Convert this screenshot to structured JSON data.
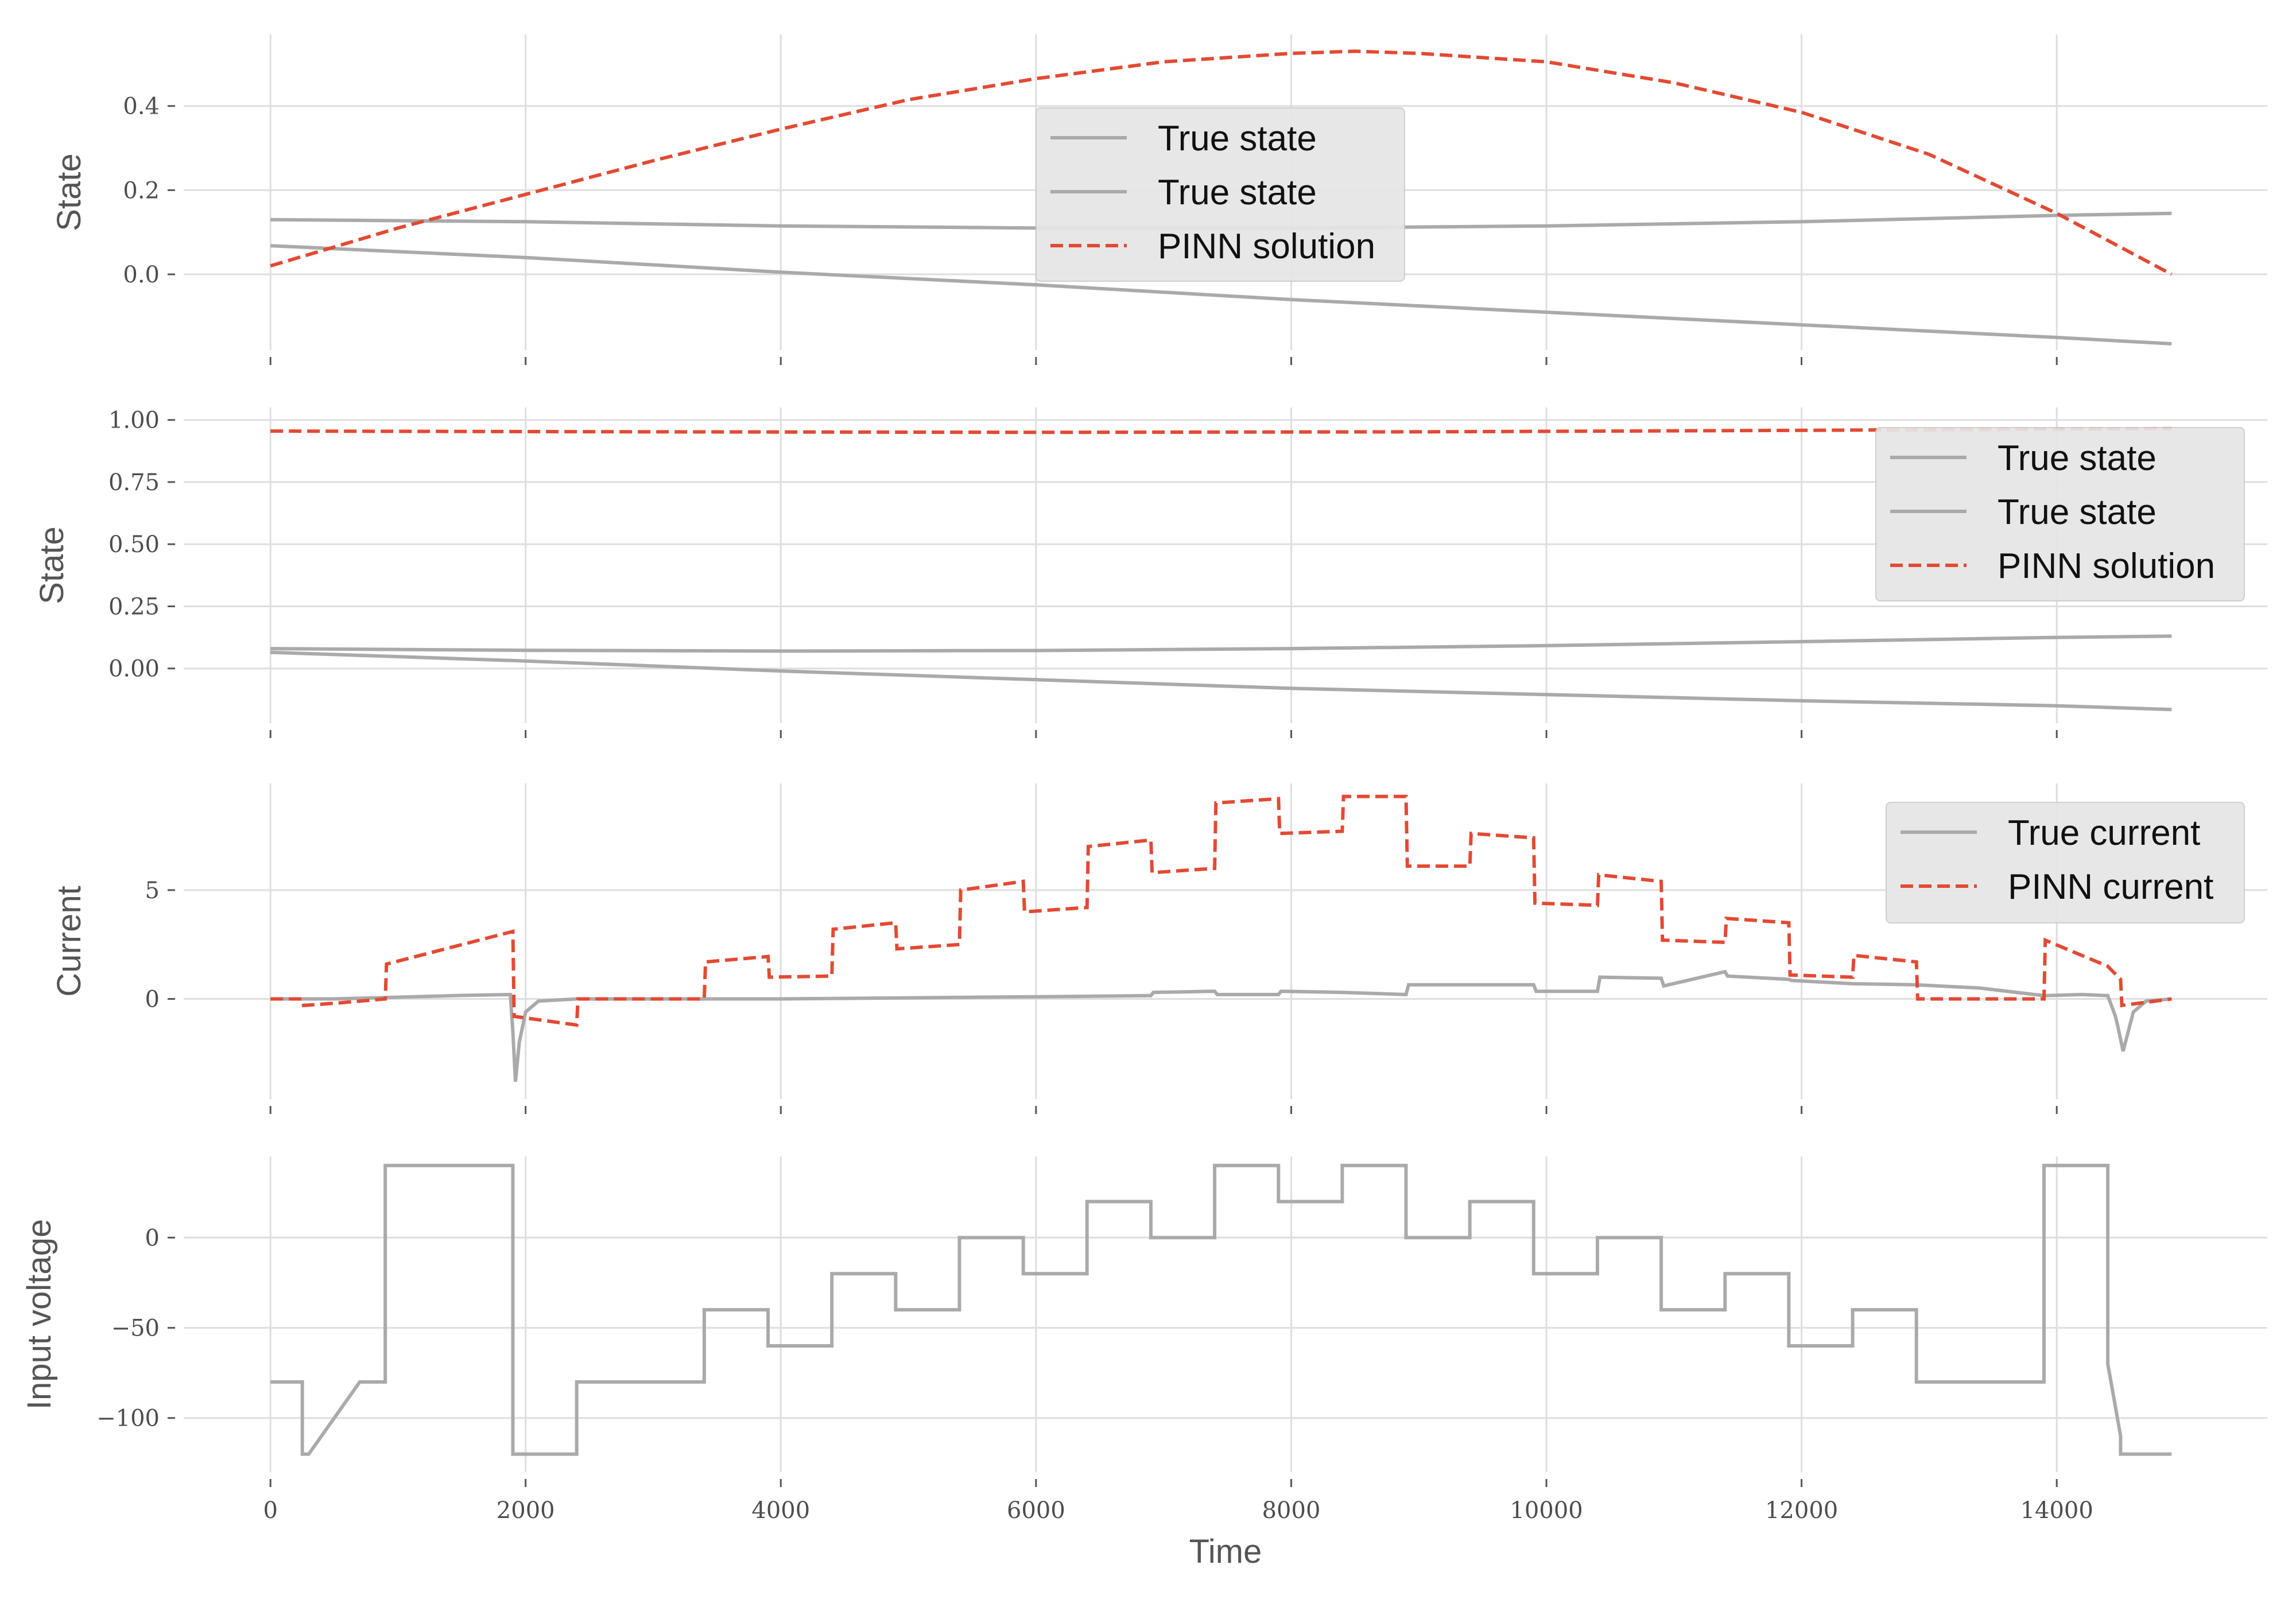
{
  "chart_data": [
    {
      "type": "line",
      "ylabel": "State",
      "ylim": [
        -0.18,
        0.57
      ],
      "yticks": [
        0.0,
        0.2,
        0.4
      ],
      "ytick_labels": [
        "0.0",
        "0.2",
        "0.4"
      ],
      "show_xticklabels": false,
      "legend": {
        "placement": "upper-center",
        "labels": [
          "True state",
          "True state",
          "PINN solution"
        ]
      },
      "series": [
        {
          "name": "True state",
          "color": "#aaaaaa",
          "style": "solid",
          "x": [
            0,
            2000,
            4000,
            6000,
            8000,
            10000,
            12000,
            14000,
            14900
          ],
          "y": [
            0.13,
            0.125,
            0.115,
            0.11,
            0.11,
            0.115,
            0.125,
            0.14,
            0.145
          ]
        },
        {
          "name": "True state",
          "color": "#aaaaaa",
          "style": "solid",
          "x": [
            0,
            2000,
            4000,
            6000,
            8000,
            10000,
            12000,
            14000,
            14900
          ],
          "y": [
            0.068,
            0.04,
            0.005,
            -0.025,
            -0.06,
            -0.09,
            -0.12,
            -0.15,
            -0.165
          ]
        },
        {
          "name": "PINN solution",
          "color": "#e24a33",
          "style": "dashed",
          "x": [
            0,
            1000,
            2000,
            3000,
            4000,
            5000,
            6000,
            7000,
            8000,
            8500,
            9000,
            10000,
            11000,
            12000,
            13000,
            14000,
            14900
          ],
          "y": [
            0.02,
            0.11,
            0.19,
            0.27,
            0.345,
            0.415,
            0.465,
            0.505,
            0.525,
            0.53,
            0.525,
            0.505,
            0.455,
            0.385,
            0.285,
            0.145,
            0.0
          ]
        }
      ]
    },
    {
      "type": "line",
      "ylabel": "State",
      "ylim": [
        -0.22,
        1.05
      ],
      "yticks": [
        0.0,
        0.25,
        0.5,
        0.75,
        1.0
      ],
      "ytick_labels": [
        "0.00",
        "0.25",
        "0.50",
        "0.75",
        "1.00"
      ],
      "show_xticklabels": false,
      "legend": {
        "placement": "right",
        "labels": [
          "True state",
          "True state",
          "PINN solution"
        ]
      },
      "series": [
        {
          "name": "True state",
          "color": "#aaaaaa",
          "style": "solid",
          "x": [
            0,
            2000,
            4000,
            6000,
            8000,
            10000,
            12000,
            14000,
            14900
          ],
          "y": [
            0.08,
            0.073,
            0.07,
            0.072,
            0.08,
            0.092,
            0.108,
            0.125,
            0.13
          ]
        },
        {
          "name": "True state",
          "color": "#aaaaaa",
          "style": "solid",
          "x": [
            0,
            2000,
            4000,
            6000,
            8000,
            10000,
            12000,
            14000,
            14900
          ],
          "y": [
            0.065,
            0.03,
            -0.01,
            -0.045,
            -0.08,
            -0.105,
            -0.13,
            -0.15,
            -0.165
          ]
        },
        {
          "name": "PINN solution",
          "color": "#e24a33",
          "style": "dashed",
          "x": [
            0,
            3000,
            6000,
            9000,
            12000,
            14900
          ],
          "y": [
            0.955,
            0.952,
            0.95,
            0.952,
            0.958,
            0.965
          ]
        }
      ]
    },
    {
      "type": "line",
      "ylabel": "Current",
      "ylim": [
        -4.6,
        9.9
      ],
      "yticks": [
        0,
        5
      ],
      "ytick_labels": [
        "0",
        "5"
      ],
      "show_xticklabels": false,
      "legend": {
        "placement": "upper-right",
        "labels": [
          "True current",
          "PINN current"
        ]
      },
      "series": [
        {
          "name": "True current",
          "color": "#aaaaaa",
          "style": "solid",
          "x": [
            0,
            500,
            1000,
            1500,
            1880,
            1900,
            1920,
            1950,
            2000,
            2100,
            2400,
            3000,
            4000,
            5000,
            6000,
            6900,
            6920,
            7400,
            7420,
            7900,
            7920,
            8400,
            8900,
            8920,
            9900,
            9920,
            10400,
            10420,
            10900,
            10920,
            11400,
            11420,
            11900,
            11920,
            12400,
            12900,
            13400,
            13900,
            14200,
            14400,
            14460,
            14480,
            14520,
            14600,
            14700,
            14900
          ],
          "y": [
            0.0,
            0.0,
            0.08,
            0.16,
            0.2,
            -1.5,
            -3.8,
            -2.0,
            -0.6,
            -0.1,
            0.0,
            0.0,
            0.0,
            0.05,
            0.1,
            0.15,
            0.3,
            0.35,
            0.2,
            0.2,
            0.35,
            0.3,
            0.2,
            0.65,
            0.65,
            0.35,
            0.35,
            1.0,
            0.95,
            0.6,
            1.25,
            1.05,
            0.9,
            0.85,
            0.7,
            0.65,
            0.5,
            0.15,
            0.2,
            0.15,
            -0.8,
            -1.3,
            -2.4,
            -0.6,
            -0.1,
            0.0
          ]
        },
        {
          "name": "PINN current",
          "color": "#e24a33",
          "style": "dashed",
          "x": [
            0,
            250,
            260,
            500,
            900,
            910,
            1900,
            1910,
            2400,
            2410,
            3400,
            3410,
            3900,
            3910,
            4400,
            4410,
            4900,
            4910,
            5400,
            5410,
            5900,
            5910,
            6400,
            6410,
            6900,
            6910,
            7400,
            7410,
            7900,
            7910,
            8400,
            8410,
            8900,
            8910,
            9400,
            9410,
            9900,
            9910,
            10400,
            10410,
            10900,
            10910,
            11400,
            11410,
            11900,
            11910,
            12400,
            12410,
            12900,
            12910,
            13400,
            13900,
            13910,
            14400,
            14500,
            14510,
            14900
          ],
          "y": [
            0.0,
            0.0,
            -0.3,
            -0.2,
            0.0,
            1.6,
            3.1,
            -0.8,
            -1.2,
            0.0,
            0.0,
            1.7,
            1.95,
            1.0,
            1.05,
            3.2,
            3.5,
            2.3,
            2.5,
            5.0,
            5.4,
            4.0,
            4.2,
            7.0,
            7.3,
            5.8,
            6.0,
            9.0,
            9.2,
            7.6,
            7.7,
            9.3,
            9.3,
            6.1,
            6.1,
            7.6,
            7.4,
            4.4,
            4.3,
            5.7,
            5.4,
            2.7,
            2.6,
            3.7,
            3.5,
            1.1,
            1.0,
            2.0,
            1.7,
            0.0,
            0.0,
            0.0,
            2.7,
            1.5,
            0.9,
            -0.3,
            0.0
          ]
        }
      ]
    },
    {
      "type": "line",
      "ylabel": "Input voltage",
      "xlabel": "Time",
      "ylim": [
        -130,
        45
      ],
      "yticks": [
        -100,
        -50,
        0
      ],
      "ytick_labels": [
        "−100",
        "−50",
        "0"
      ],
      "xlim": [
        -680,
        15650
      ],
      "xticks": [
        0,
        2000,
        4000,
        6000,
        8000,
        10000,
        12000,
        14000
      ],
      "xtick_labels": [
        "0",
        "2000",
        "4000",
        "6000",
        "8000",
        "10000",
        "12000",
        "14000"
      ],
      "show_xticklabels": true,
      "series": [
        {
          "name": "",
          "color": "#aaaaaa",
          "style": "solid",
          "x": [
            0,
            250,
            250,
            300,
            700,
            900,
            900,
            1900,
            1900,
            2400,
            2400,
            3400,
            3400,
            3900,
            3900,
            4400,
            4400,
            4900,
            4900,
            5400,
            5400,
            5900,
            5900,
            6400,
            6400,
            6900,
            6900,
            7400,
            7400,
            7900,
            7900,
            8400,
            8400,
            8900,
            8900,
            9400,
            9400,
            9900,
            9900,
            10400,
            10400,
            10900,
            10900,
            11400,
            11400,
            11900,
            11900,
            12400,
            12400,
            12900,
            12900,
            13900,
            13900,
            14400,
            14400,
            14500,
            14500,
            14900
          ],
          "y": [
            -80,
            -80,
            -120,
            -120,
            -80,
            -80,
            40,
            40,
            -120,
            -120,
            -80,
            -80,
            -40,
            -40,
            -60,
            -60,
            -20,
            -20,
            -40,
            -40,
            0,
            0,
            -20,
            -20,
            20,
            20,
            0,
            0,
            40,
            40,
            20,
            20,
            40,
            40,
            0,
            0,
            20,
            20,
            -20,
            -20,
            0,
            0,
            -40,
            -40,
            -20,
            -20,
            -60,
            -60,
            -40,
            -40,
            -80,
            -80,
            40,
            40,
            -70,
            -110,
            -120,
            -120
          ]
        }
      ]
    }
  ]
}
